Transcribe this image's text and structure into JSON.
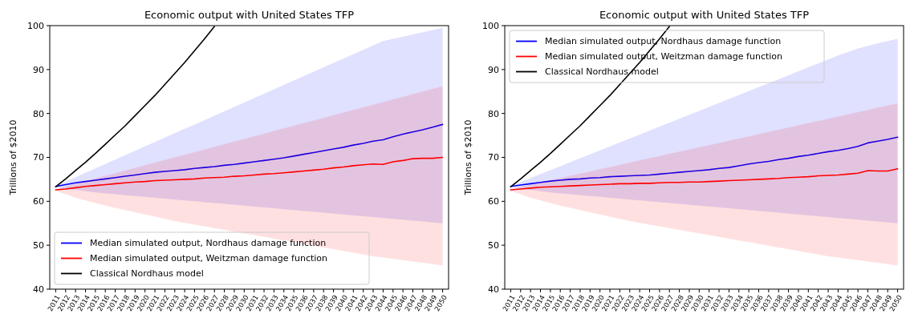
{
  "chart_data": [
    {
      "type": "line",
      "title": "Economic output with United States TFP",
      "ylabel": "Trillions of $2010",
      "categories": [
        "2011",
        "2012",
        "2013",
        "2014",
        "2015",
        "2016",
        "2017",
        "2018",
        "2019",
        "2020",
        "2021",
        "2022",
        "2023",
        "2024",
        "2025",
        "2026",
        "2027",
        "2028",
        "2029",
        "2030",
        "2031",
        "2032",
        "2033",
        "2034",
        "2035",
        "2036",
        "2037",
        "2038",
        "2039",
        "2040",
        "2041",
        "2042",
        "2043",
        "2044",
        "2045",
        "2046",
        "2047",
        "2048",
        "2049",
        "2050"
      ],
      "ylim": [
        40,
        100
      ],
      "yticks": [
        40,
        50,
        60,
        70,
        80,
        90,
        100
      ],
      "legend": "bottom left",
      "series": [
        {
          "name": "Median simulated output, Nordhaus damage function",
          "color": "#0000ff",
          "values": [
            63.4,
            63.8,
            64.2,
            64.5,
            64.8,
            65.1,
            65.4,
            65.7,
            66.0,
            66.3,
            66.6,
            66.8,
            67.0,
            67.2,
            67.5,
            67.7,
            67.9,
            68.2,
            68.4,
            68.7,
            69.0,
            69.3,
            69.6,
            69.9,
            70.3,
            70.7,
            71.1,
            71.5,
            71.9,
            72.3,
            72.8,
            73.2,
            73.7,
            74.0,
            74.7,
            75.3,
            75.8,
            76.3,
            76.9,
            77.5
          ],
          "lower": [
            63.2,
            62.9,
            62.6,
            62.3,
            62.0,
            61.8,
            61.6,
            61.4,
            61.2,
            61.0,
            60.8,
            60.6,
            60.4,
            60.2,
            60.0,
            59.8,
            59.6,
            59.4,
            59.2,
            59.0,
            58.8,
            58.6,
            58.4,
            58.2,
            58.0,
            57.8,
            57.6,
            57.4,
            57.2,
            57.0,
            56.8,
            56.6,
            56.4,
            56.2,
            56.0,
            55.8,
            55.6,
            55.4,
            55.2,
            55.0
          ],
          "upper": [
            63.5,
            64.5,
            65.5,
            66.5,
            67.5,
            68.5,
            69.5,
            70.5,
            71.5,
            72.5,
            73.5,
            74.5,
            75.5,
            76.5,
            77.5,
            78.5,
            79.5,
            80.5,
            81.5,
            82.5,
            83.5,
            84.5,
            85.5,
            86.5,
            87.5,
            88.5,
            89.5,
            90.5,
            91.5,
            92.5,
            93.5,
            94.5,
            95.5,
            96.5,
            97.0,
            97.5,
            98.0,
            98.5,
            99.0,
            99.5
          ]
        },
        {
          "name": "Median simulated output, Weitzman damage function",
          "color": "#ff0000",
          "values": [
            62.6,
            62.8,
            63.1,
            63.4,
            63.6,
            63.8,
            64.0,
            64.2,
            64.4,
            64.5,
            64.7,
            64.8,
            64.9,
            65.0,
            65.1,
            65.3,
            65.4,
            65.5,
            65.7,
            65.8,
            66.0,
            66.2,
            66.3,
            66.5,
            66.7,
            66.9,
            67.1,
            67.3,
            67.6,
            67.8,
            68.1,
            68.3,
            68.5,
            68.4,
            69.0,
            69.3,
            69.7,
            69.8,
            69.8,
            70.0
          ],
          "lower": [
            62.4,
            61.6,
            60.8,
            60.2,
            59.6,
            59.0,
            58.5,
            58.0,
            57.5,
            57.0,
            56.5,
            56.0,
            55.5,
            55.1,
            54.7,
            54.3,
            53.9,
            53.5,
            53.1,
            52.7,
            52.3,
            51.9,
            51.5,
            51.1,
            50.7,
            50.3,
            49.9,
            49.5,
            49.1,
            48.7,
            48.3,
            47.9,
            47.5,
            47.2,
            46.9,
            46.6,
            46.3,
            46.0,
            45.7,
            45.4
          ],
          "upper": [
            62.8,
            63.4,
            64.0,
            64.6,
            65.2,
            65.8,
            66.4,
            67.0,
            67.6,
            68.2,
            68.8,
            69.4,
            70.0,
            70.6,
            71.2,
            71.8,
            72.4,
            73.0,
            73.6,
            74.2,
            74.8,
            75.4,
            76.0,
            76.6,
            77.2,
            77.8,
            78.4,
            79.0,
            79.6,
            80.2,
            80.8,
            81.4,
            82.0,
            82.6,
            83.2,
            83.8,
            84.4,
            85.0,
            85.6,
            86.2
          ]
        },
        {
          "name": "Classical Nordhaus model",
          "color": "#000000",
          "values": [
            63.3,
            65.1,
            67.0,
            68.9,
            70.9,
            73.0,
            75.1,
            77.2,
            79.5,
            81.8,
            84.1,
            86.6,
            89.1,
            91.6,
            94.3,
            97.0,
            99.8,
            null,
            null,
            null,
            null,
            null,
            null,
            null,
            null,
            null,
            null,
            null,
            null,
            null,
            null,
            null,
            null,
            null,
            null,
            null,
            null,
            null,
            null,
            null
          ]
        }
      ]
    },
    {
      "type": "line",
      "title": "Economic output with United States TFP",
      "ylabel": "Trillions of $2010",
      "categories": [
        "2011",
        "2012",
        "2013",
        "2014",
        "2015",
        "2016",
        "2017",
        "2018",
        "2019",
        "2020",
        "2021",
        "2022",
        "2023",
        "2024",
        "2025",
        "2026",
        "2027",
        "2028",
        "2029",
        "2030",
        "2031",
        "2032",
        "2033",
        "2034",
        "2035",
        "2036",
        "2037",
        "2038",
        "2039",
        "2040",
        "2041",
        "2042",
        "2043",
        "2044",
        "2045",
        "2046",
        "2047",
        "2048",
        "2049",
        "2050"
      ],
      "ylim": [
        40,
        100
      ],
      "yticks": [
        40,
        50,
        60,
        70,
        80,
        90,
        100
      ],
      "legend": "top left",
      "series": [
        {
          "name": "Median simulated output, Nordhaus damage function",
          "color": "#0000ff",
          "values": [
            63.4,
            63.7,
            64.0,
            64.3,
            64.6,
            64.8,
            65.0,
            65.1,
            65.3,
            65.4,
            65.6,
            65.7,
            65.8,
            65.9,
            66.0,
            66.2,
            66.4,
            66.6,
            66.8,
            67.0,
            67.2,
            67.5,
            67.7,
            68.1,
            68.5,
            68.8,
            69.1,
            69.5,
            69.8,
            70.2,
            70.5,
            70.9,
            71.3,
            71.6,
            72.0,
            72.5,
            73.3,
            73.7,
            74.1,
            74.6
          ],
          "lower": [
            63.2,
            62.9,
            62.6,
            62.3,
            62.0,
            61.8,
            61.6,
            61.4,
            61.2,
            61.0,
            60.8,
            60.6,
            60.4,
            60.2,
            60.0,
            59.8,
            59.6,
            59.4,
            59.2,
            59.0,
            58.8,
            58.6,
            58.4,
            58.2,
            58.0,
            57.8,
            57.6,
            57.4,
            57.2,
            57.0,
            56.8,
            56.6,
            56.4,
            56.2,
            56.0,
            55.8,
            55.6,
            55.4,
            55.2,
            55.0
          ],
          "upper": [
            63.5,
            64.4,
            65.3,
            66.2,
            67.1,
            68.0,
            68.9,
            69.8,
            70.7,
            71.6,
            72.5,
            73.4,
            74.3,
            75.2,
            76.1,
            77.0,
            77.9,
            78.8,
            79.7,
            80.6,
            81.5,
            82.4,
            83.3,
            84.2,
            85.1,
            86.0,
            86.9,
            87.8,
            88.7,
            89.6,
            90.5,
            91.4,
            92.3,
            93.2,
            94.0,
            94.8,
            95.4,
            96.0,
            96.5,
            97.0
          ]
        },
        {
          "name": "Median simulated output, Weitzman damage function",
          "color": "#ff0000",
          "values": [
            62.6,
            62.8,
            63.0,
            63.2,
            63.3,
            63.4,
            63.5,
            63.6,
            63.7,
            63.8,
            63.9,
            64.0,
            64.0,
            64.1,
            64.1,
            64.2,
            64.3,
            64.3,
            64.4,
            64.4,
            64.5,
            64.6,
            64.7,
            64.8,
            64.9,
            65.0,
            65.1,
            65.2,
            65.4,
            65.5,
            65.6,
            65.8,
            65.9,
            66.0,
            66.2,
            66.4,
            67.0,
            66.9,
            66.9,
            67.4
          ],
          "lower": [
            62.4,
            61.6,
            60.8,
            60.2,
            59.6,
            59.0,
            58.5,
            58.0,
            57.5,
            57.0,
            56.5,
            56.0,
            55.5,
            55.1,
            54.7,
            54.3,
            53.9,
            53.5,
            53.1,
            52.7,
            52.3,
            51.9,
            51.5,
            51.1,
            50.7,
            50.3,
            49.9,
            49.5,
            49.1,
            48.7,
            48.3,
            47.9,
            47.5,
            47.2,
            46.9,
            46.6,
            46.3,
            46.0,
            45.7,
            45.4
          ],
          "upper": [
            62.8,
            63.3,
            63.8,
            64.3,
            64.8,
            65.3,
            65.8,
            66.3,
            66.8,
            67.3,
            67.8,
            68.3,
            68.8,
            69.3,
            69.8,
            70.3,
            70.8,
            71.3,
            71.8,
            72.3,
            72.8,
            73.3,
            73.8,
            74.3,
            74.8,
            75.3,
            75.8,
            76.3,
            76.8,
            77.3,
            77.8,
            78.3,
            78.8,
            79.3,
            79.8,
            80.3,
            80.8,
            81.3,
            81.8,
            82.3
          ]
        },
        {
          "name": "Classical Nordhaus model",
          "color": "#000000",
          "values": [
            63.3,
            65.1,
            67.0,
            68.9,
            70.9,
            73.0,
            75.1,
            77.2,
            79.5,
            81.8,
            84.1,
            86.6,
            89.1,
            91.6,
            94.3,
            97.0,
            99.8,
            null,
            null,
            null,
            null,
            null,
            null,
            null,
            null,
            null,
            null,
            null,
            null,
            null,
            null,
            null,
            null,
            null,
            null,
            null,
            null,
            null,
            null,
            null
          ]
        }
      ]
    }
  ]
}
